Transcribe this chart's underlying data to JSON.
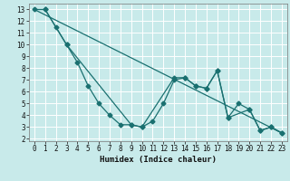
{
  "title": "",
  "xlabel": "Humidex (Indice chaleur)",
  "bg_color": "#c8eaea",
  "grid_color": "#ffffff",
  "line_color": "#1a7070",
  "xlim": [
    -0.5,
    23.5
  ],
  "ylim": [
    1.8,
    13.5
  ],
  "xticks": [
    0,
    1,
    2,
    3,
    4,
    5,
    6,
    7,
    8,
    9,
    10,
    11,
    12,
    13,
    14,
    15,
    16,
    17,
    18,
    19,
    20,
    21,
    22,
    23
  ],
  "yticks": [
    2,
    3,
    4,
    5,
    6,
    7,
    8,
    9,
    10,
    11,
    12,
    13
  ],
  "series1_x": [
    0,
    1,
    3,
    4,
    5,
    6,
    7,
    8,
    9,
    10,
    11,
    12,
    13,
    14,
    15,
    16,
    17,
    18,
    19,
    20,
    21,
    22,
    23
  ],
  "series1_y": [
    13,
    13,
    10,
    8.5,
    6.5,
    5,
    4,
    3.2,
    3.2,
    3.0,
    3.5,
    5.0,
    7.0,
    7.2,
    6.5,
    6.3,
    7.8,
    3.8,
    5.0,
    4.5,
    2.7,
    3.0,
    2.5
  ],
  "series2_x": [
    1,
    2,
    3,
    9,
    10,
    13,
    14,
    15,
    16,
    17,
    18,
    20,
    21,
    22,
    23
  ],
  "series2_y": [
    13,
    11.5,
    10,
    3.2,
    3.0,
    7.2,
    7.2,
    6.5,
    6.3,
    7.8,
    3.8,
    4.5,
    2.7,
    3.0,
    2.5
  ],
  "series3_x": [
    0,
    23
  ],
  "series3_y": [
    13,
    2.5
  ]
}
